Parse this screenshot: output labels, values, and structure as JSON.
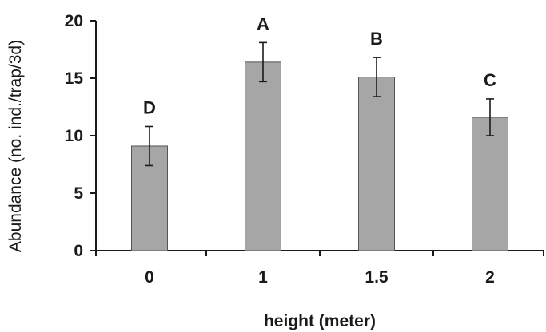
{
  "chart_data": {
    "type": "bar",
    "title": "",
    "xlabel": "height (meter)",
    "ylabel": "Abundance (no. ind./trap/3d)",
    "categories": [
      "0",
      "1",
      "1.5",
      "2"
    ],
    "values": [
      9.1,
      16.4,
      15.1,
      11.6
    ],
    "errors": [
      1.7,
      1.7,
      1.7,
      1.6
    ],
    "significance_labels": [
      "D",
      "A",
      "B",
      "C"
    ],
    "ylim": [
      0,
      20
    ],
    "yticks": [
      "0",
      "5",
      "10",
      "15",
      "20"
    ],
    "grid": false,
    "bar_color": "#a6a6a6",
    "bar_edge_color": "#555555",
    "axis_color": "#1a1a1a"
  }
}
